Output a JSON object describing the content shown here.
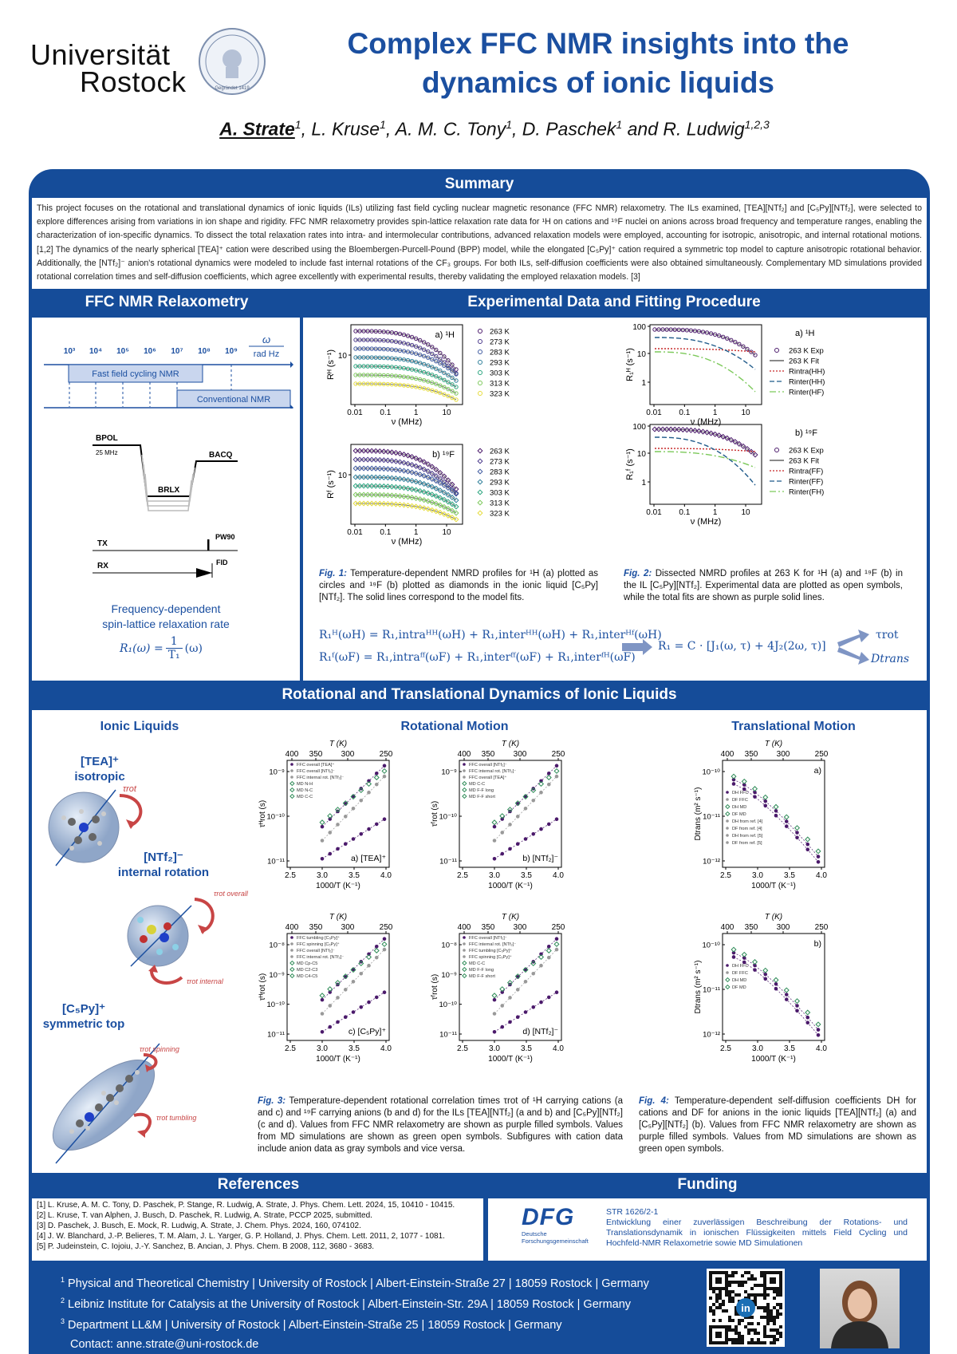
{
  "header": {
    "university": "Universität",
    "city": "Rostock",
    "seal_text": "Gegründet 1419",
    "title_line1": "Complex FFC NMR insights into the",
    "title_line2": "dynamics of ionic liquids",
    "authors": [
      {
        "name": "A. Strate",
        "sup": "1"
      },
      {
        "name": ", L. Kruse",
        "sup": "1"
      },
      {
        "name": ", A. M. C. Tony",
        "sup": "1"
      },
      {
        "name": ", D. Paschek",
        "sup": "1"
      },
      {
        "name": " and R. Ludwig",
        "sup": "1,2,3"
      }
    ]
  },
  "summary": {
    "title": "Summary",
    "text": "This project focuses on the rotational and translational dynamics of ionic liquids (ILs) utilizing fast field cycling nuclear magnetic resonance (FFC NMR) relaxometry. The ILs examined, [TEA][NTf₂] and [C₅Py][NTf₂], were selected to explore differences arising from variations in ion shape and rigidity. FFC NMR relaxometry provides spin-lattice relaxation rate data for ¹H on cations and ¹⁹F nuclei on anions across broad frequency and temperature ranges, enabling the characterization of ion-specific dynamics. To dissect the total relaxation rates into intra- and intermolecular contributions, advanced relaxation models were employed, accounting for isotropic, anisotropic, and internal rotational motions. [1,2] The dynamics of the nearly spherical [TEA]⁺ cation were described using the Bloembergen-Purcell-Pound (BPP) model, while the elongated [C₅Py]⁺ cation required a symmetric top model to capture anisotropic rotational behavior. Additionally, the [NTf₂]⁻ anion's rotational dynamics were modeled to include fast internal rotations of the CF₃ groups. For both ILs, self-diffusion coefficients were also obtained simultaneously. Complementary MD simulations provided rotational correlation times and self-diffusion coefficients, which agree excellently with experimental results, thereby validating the employed relaxation models. [3]"
  },
  "ffc": {
    "title": "FFC NMR Relaxometry",
    "freq_ticks": [
      "10³",
      "10⁴",
      "10⁵",
      "10⁶",
      "10⁷",
      "10⁸",
      "10⁹"
    ],
    "omega": "ω",
    "omega_unit": "rad Hz",
    "fast_label": "Fast field cycling NMR",
    "conv_label": "Conventional NMR",
    "bpol": "BPOL",
    "mhz": "25 MHz",
    "bacq": "BACQ",
    "brlx": "BRLX",
    "tx": "TX",
    "pw90": "PW90",
    "rx": "RX",
    "fid": "FID",
    "desc1": "Frequency-dependent",
    "desc2": "spin-lattice relaxation rate",
    "formula_lhs": "R₁(ω) =",
    "formula_num": "1",
    "formula_den": "T₁",
    "formula_rhs": "(ω)"
  },
  "exp": {
    "title": "Experimental Data and Fitting Procedure",
    "temps": [
      "263 K",
      "273 K",
      "283 K",
      "293 K",
      "303 K",
      "313 K",
      "323 K"
    ],
    "colors": [
      "#4b1a6b",
      "#4b3a8c",
      "#3f5aa0",
      "#2e7f9a",
      "#2aa57f",
      "#7cc95a",
      "#e6dc3a"
    ],
    "plotA": "a) ¹H",
    "plotB": "b) ¹⁹F",
    "ylabA": "Rᴴ (s⁻¹)",
    "ylabB": "Rᶠ (s⁻¹)",
    "xlab": "ν (MHz)",
    "xticks": [
      "0.01",
      "0.1",
      "1",
      "10"
    ],
    "ytick10": "10",
    "ytick100": "100",
    "ytick1": "1",
    "fig2legendA": [
      "263 K Exp",
      "263 K Fit",
      "Rintra(HH)",
      "Rinter(HH)",
      "Rinter(HF)"
    ],
    "fig2legendB": [
      "263 K Exp",
      "263 K Fit",
      "Rintra(FF)",
      "Rinter(FF)",
      "Rinter(FH)"
    ],
    "fig2ylabA": "R₁ᴴ (s⁻¹)",
    "fig2ylabB": "R₁ᶠ (s⁻¹)",
    "fig1_label": "Fig. 1:",
    "fig1": "Temperature-dependent NMRD profiles for ¹H (a) plotted as circles and ¹⁹F (b) plotted as diamonds in the ionic liquid [C₅Py][NTf₂]. The solid lines correspond to the model fits.",
    "fig2_label": "Fig. 2:",
    "fig2": "Dissected NMRD profiles at 263 K for ¹H (a) and ¹⁹F (b) in the IL [C₅Py][NTf₂]. Experimental data are plotted as open symbols, while the total fits are shown as purple solid lines.",
    "eq1": "R₁ᴴ(ωH) = R₁,intraᴴᴴ(ωH) + R₁,interᴴᴴ(ωH) + R₁,interᴴᶠ(ωH)",
    "eq2": "R₁ᶠ(ωF) = R₁,intraᶠᶠ(ωF) + R₁,interᶠᶠ(ωF) + R₁,interᶠᴴ(ωF)",
    "eq3": "R₁ = C · [J₁(ω, τ) + 4J₂(2ω, τ)]",
    "tau_rot": "τrot",
    "d_trans": "Dtrans"
  },
  "dyn": {
    "title": "Rotational and Translational Dynamics of Ionic Liquids",
    "il_title": "Ionic Liquids",
    "rot_title": "Rotational Motion",
    "trans_title": "Translational Motion",
    "tea": "[TEA]⁺",
    "tea_desc": "isotropic",
    "ntf": "[NTf₂]⁻",
    "ntf_desc": "internal rotation",
    "c5py": "[C₅Py]⁺",
    "c5py_desc": "symmetric top",
    "tau_rot": "τrot",
    "tau_overall": "τrot overall",
    "tau_internal": "τrot internal",
    "tau_spinning": "τrot spinning",
    "tau_tumbling": "τrot tumbling",
    "top_axis": "T (K)",
    "top_ticks": [
      "400",
      "350",
      "300",
      "250"
    ],
    "bottom_axis": "1000/T (K⁻¹)",
    "bottom_ticks": [
      "2.5",
      "3.0",
      "3.5",
      "4.0"
    ],
    "rot_plots": [
      {
        "label": "a) [TEA]⁺",
        "ylab": "τᴴrot (s)",
        "legend": [
          "FFC overall [TEA]⁺",
          "FFC overall [NTf₂]⁻",
          "FFC internal rot. [NTf₂]⁻",
          "MD N-H",
          "MD N-C",
          "MD C-C"
        ]
      },
      {
        "label": "b) [NTf₂]⁻",
        "ylab": "τᶠrot (s)",
        "legend": [
          "FFC overall [NTf₂]⁻",
          "FFC internal rot. [NTf₂]⁻",
          "FFC overall [TEA]⁺",
          "MD C-C",
          "MD F-F long",
          "MD F-F short"
        ]
      },
      {
        "label": "c) [C₅Py]⁺",
        "ylab": "τᴴrot (s)",
        "legend": [
          "FFC tumbling [C₅Py]⁺",
          "FFC spinning [C₅Py]⁺",
          "FFC overall [NTf₂]⁻",
          "FFC internal rot. [NTf₂]⁻",
          "MD Cp-C5",
          "MD C2-C3",
          "MD C4-C5"
        ]
      },
      {
        "label": "d) [NTf₂]⁻",
        "ylab": "τᶠrot (s)",
        "legend": [
          "FFC overall [NTf₂]⁻",
          "FFC internal rot. [NTf₂]⁻",
          "FFC tumbling [C₅Py]⁺",
          "FFC spinning [C₅Py]⁺",
          "MD C-C",
          "MD F-F long",
          "MD F-F short"
        ]
      }
    ],
    "trans_plots": [
      {
        "label": "a)",
        "ylab": "Dtrans (m² s⁻¹)",
        "legend": [
          "DH FFC",
          "DF FFC",
          "DH MD",
          "DF MD",
          "DH from ref. [4]",
          "DF from ref. [4]",
          "DH from ref. [5]",
          "DF from ref. [5]"
        ]
      },
      {
        "label": "b)",
        "ylab": "Dtrans (m² s⁻¹)",
        "legend": [
          "DH FFC",
          "DF FFC",
          "DH MD",
          "DF MD"
        ]
      }
    ],
    "rot_yticks_ab": [
      "10⁻⁹",
      "10⁻¹⁰",
      "10⁻¹¹"
    ],
    "rot_yticks_cd": [
      "10⁻⁸",
      "10⁻⁹",
      "10⁻¹⁰",
      "10⁻¹¹"
    ],
    "trans_yticks": [
      "10⁻¹⁰",
      "10⁻¹¹",
      "10⁻¹²"
    ],
    "fig3_label": "Fig. 3:",
    "fig3": "Temperature-dependent rotational correlation times τrot of ¹H carrying cations (a and c) and ¹⁹F carrying anions (b and d) for the ILs [TEA][NTf₂] (a and b) and [C₅Py][NTf₂] (c and d). Values from FFC NMR relaxometry are shown as purple filled symbols. Values from MD simulations are shown as green open symbols. Subfigures with cation data include anion data as gray symbols and vice versa.",
    "fig4_label": "Fig. 4:",
    "fig4": "Temperature-dependent self-diffusion coefficients DH for cations and DF for anions in the ionic liquids [TEA][NTf₂] (a) and [C₅Py][NTf₂] (b). Values from FFC NMR relaxometry are shown as purple filled symbols. Values from MD simulations are shown as green open symbols."
  },
  "refs": {
    "title": "References",
    "items": [
      "[1] L. Kruse, A. M. C. Tony, D. Paschek, P. Stange, R. Ludwig, A. Strate, J. Phys. Chem. Lett. 2024, 15, 10410 - 10415.",
      "[2] L. Kruse, T. van Alphen, J. Busch, D. Paschek, R. Ludwig, A. Strate, PCCP 2025, submitted.",
      "[3] D. Paschek, J. Busch, E. Mock, R. Ludwig, A. Strate, J. Chem. Phys. 2024, 160, 074102.",
      "[4] J. W. Blanchard, J.-P. Belieres, T. M. Alam, J. L. Yarger, G. P. Holland, J. Phys. Chem. Lett. 2011, 2, 1077 - 1081.",
      "[5] P. Judeinstein, C. Iojoiu, J.-Y. Sanchez, B. Ancian, J. Phys. Chem. B 2008, 112, 3680 - 3683."
    ]
  },
  "funding": {
    "title": "Funding",
    "dfg": "DFG",
    "dfg_sub1": "Deutsche",
    "dfg_sub2": "Forschungsgemeinschaft",
    "grant": "STR 1626/2-1",
    "text": "Entwicklung einer zuverlässigen Beschreibung der Rotations- und Translationsdynamik in ionischen Flüssigkeiten mittels Field Cycling und Hochfeld-NMR Relaxometrie sowie MD Simulationen"
  },
  "footer": {
    "affiliations": [
      {
        "sup": "1",
        "text": "Physical and Theoretical Chemistry | University of Rostock | Albert-Einstein-Straße 27 | 18059 Rostock | Germany"
      },
      {
        "sup": "2",
        "text": "Leibniz Institute for Catalysis at the University of Rostock | Albert-Einstein-Str. 29A | 18059 Rostock | Germany"
      },
      {
        "sup": "3",
        "text": "Department LL&M | University of Rostock | Albert-Einstein-Straße 25 | 18059 Rostock | Germany"
      }
    ],
    "contact": "Contact: anne.strate@uni-rostock.de",
    "linkedin": "in"
  }
}
